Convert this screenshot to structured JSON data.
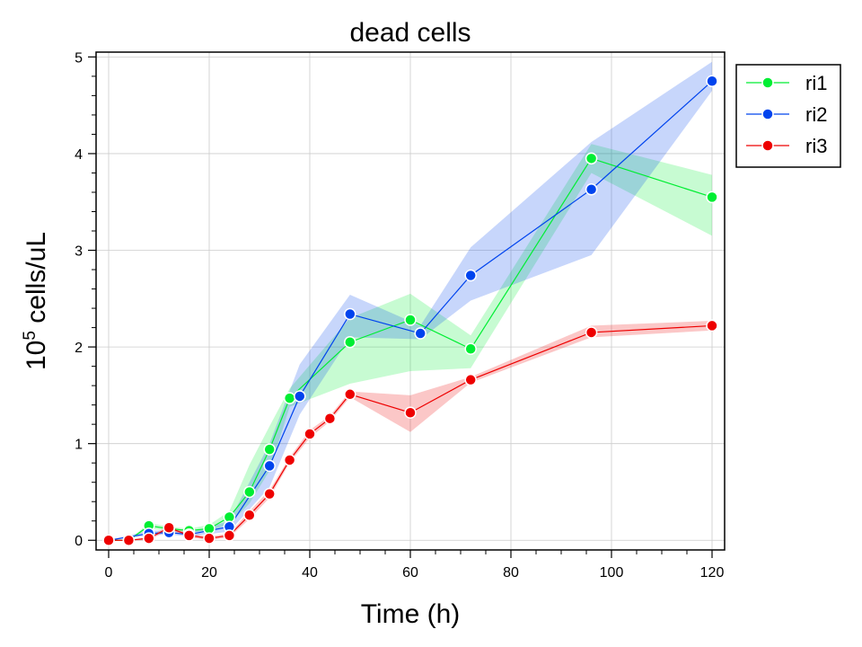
{
  "chart_data": {
    "type": "line",
    "title": "dead cells",
    "xlabel": "Time (h)",
    "ylabel_base": "10",
    "ylabel_exp": "5",
    "ylabel_rest": " cells/uL",
    "xlim": [
      -2.5,
      122.5
    ],
    "ylim": [
      -0.1,
      5.05
    ],
    "xticks": [
      0,
      20,
      40,
      60,
      80,
      100,
      120
    ],
    "yticks": [
      0,
      1,
      2,
      3,
      4,
      5
    ],
    "grid": true,
    "legend_position": "outside-top-right",
    "series": [
      {
        "name": "ri1",
        "color": "#00ee33",
        "points": [
          [
            0,
            0.0
          ],
          [
            4,
            0.0
          ],
          [
            8,
            0.15
          ],
          [
            12,
            0.12
          ],
          [
            16,
            0.1
          ],
          [
            20,
            0.12
          ],
          [
            24,
            0.24
          ],
          [
            28,
            0.5
          ],
          [
            32,
            0.94
          ],
          [
            36,
            1.47
          ],
          [
            48,
            2.05
          ],
          [
            60,
            2.28
          ],
          [
            72,
            1.98
          ],
          [
            96,
            3.95
          ],
          [
            120,
            3.55
          ]
        ],
        "lower": [
          0,
          0,
          0.12,
          0.1,
          0.08,
          0.09,
          0.17,
          0.38,
          0.72,
          1.38,
          1.62,
          1.75,
          1.78,
          3.8,
          3.15
        ],
        "upper": [
          0,
          0,
          0.18,
          0.14,
          0.12,
          0.16,
          0.3,
          0.78,
          1.18,
          1.57,
          2.3,
          2.55,
          2.12,
          4.1,
          3.78
        ]
      },
      {
        "name": "ri2",
        "color": "#0044ee",
        "points": [
          [
            0,
            0.0
          ],
          [
            8,
            0.07
          ],
          [
            12,
            0.08
          ],
          [
            16,
            0.06
          ],
          [
            24,
            0.14
          ],
          [
            32,
            0.77
          ],
          [
            38,
            1.49
          ],
          [
            48,
            2.34
          ],
          [
            62,
            2.14
          ],
          [
            72,
            2.74
          ],
          [
            96,
            3.63
          ],
          [
            120,
            4.75
          ]
        ],
        "lower": [
          0,
          0.05,
          0.06,
          0.04,
          0.09,
          0.55,
          1.3,
          2.1,
          2.08,
          2.48,
          2.95,
          4.65
        ],
        "upper": [
          0,
          0.1,
          0.1,
          0.08,
          0.2,
          1.0,
          1.82,
          2.54,
          2.22,
          3.03,
          4.12,
          4.95
        ]
      },
      {
        "name": "ri3",
        "color": "#ee0000",
        "points": [
          [
            0,
            0.0
          ],
          [
            4,
            0.0
          ],
          [
            8,
            0.02
          ],
          [
            12,
            0.13
          ],
          [
            16,
            0.05
          ],
          [
            20,
            0.02
          ],
          [
            24,
            0.05
          ],
          [
            28,
            0.26
          ],
          [
            32,
            0.48
          ],
          [
            36,
            0.83
          ],
          [
            40,
            1.1
          ],
          [
            44,
            1.26
          ],
          [
            48,
            1.51
          ],
          [
            60,
            1.32
          ],
          [
            72,
            1.66
          ],
          [
            96,
            2.15
          ],
          [
            120,
            2.22
          ]
        ],
        "lower": [
          0,
          0,
          0.0,
          0.11,
          0.03,
          0.0,
          0.03,
          0.22,
          0.44,
          0.8,
          1.06,
          1.23,
          1.48,
          1.12,
          1.63,
          2.1,
          2.17
        ],
        "upper": [
          0,
          0,
          0.04,
          0.15,
          0.07,
          0.04,
          0.07,
          0.3,
          0.52,
          0.86,
          1.14,
          1.29,
          1.54,
          1.5,
          1.69,
          2.22,
          2.27
        ]
      }
    ]
  }
}
